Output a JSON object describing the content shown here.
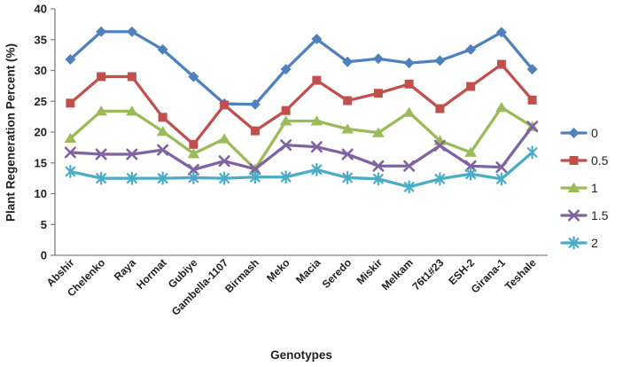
{
  "chart_data": {
    "type": "line",
    "title": "",
    "xlabel": "Genotypes",
    "ylabel": "Plant Regeneration Percent (%)",
    "ylim": [
      0,
      40
    ],
    "y_ticks": [
      0,
      5,
      10,
      15,
      20,
      25,
      30,
      35,
      40
    ],
    "grid": false,
    "legend_position": "right",
    "axis_color": "#808080",
    "text_color": "#1f1f1f",
    "categories": [
      "Abshir",
      "Chelenko",
      "Raya",
      "Hormat",
      "Gubiye",
      "Gambella-1107",
      "Birmash",
      "Meko",
      "Macia",
      "Seredo",
      "Miskir",
      "Melkam",
      "76t1#23",
      "ESH-2",
      "Girana-1",
      "Teshale"
    ],
    "series": [
      {
        "name": "0",
        "color": "#4F81BD",
        "marker": "diamond",
        "values": [
          31.8,
          36.3,
          36.3,
          33.4,
          29.0,
          24.6,
          24.5,
          30.2,
          35.1,
          31.4,
          31.9,
          31.2,
          31.6,
          33.4,
          36.2,
          30.2
        ]
      },
      {
        "name": "0.5",
        "color": "#C0504D",
        "marker": "square",
        "values": [
          24.7,
          29.0,
          29.0,
          22.4,
          18.0,
          24.4,
          20.2,
          23.5,
          28.4,
          25.1,
          26.3,
          27.8,
          23.8,
          27.4,
          31.0,
          25.2
        ]
      },
      {
        "name": "1",
        "color": "#9BBB59",
        "marker": "triangle",
        "values": [
          19.0,
          23.4,
          23.4,
          20.1,
          16.5,
          18.9,
          14.0,
          21.8,
          21.8,
          20.5,
          19.9,
          23.2,
          18.6,
          16.7,
          24.0,
          20.9
        ]
      },
      {
        "name": "1.5",
        "color": "#8064A2",
        "marker": "x",
        "values": [
          16.7,
          16.4,
          16.4,
          17.1,
          13.9,
          15.3,
          14.0,
          17.9,
          17.6,
          16.4,
          14.5,
          14.5,
          17.8,
          14.5,
          14.3,
          20.9
        ]
      },
      {
        "name": "2",
        "color": "#4BACC6",
        "marker": "star",
        "values": [
          13.6,
          12.5,
          12.5,
          12.5,
          12.6,
          12.5,
          12.7,
          12.7,
          13.9,
          12.6,
          12.4,
          11.1,
          12.4,
          13.2,
          12.4,
          16.7
        ]
      }
    ]
  }
}
